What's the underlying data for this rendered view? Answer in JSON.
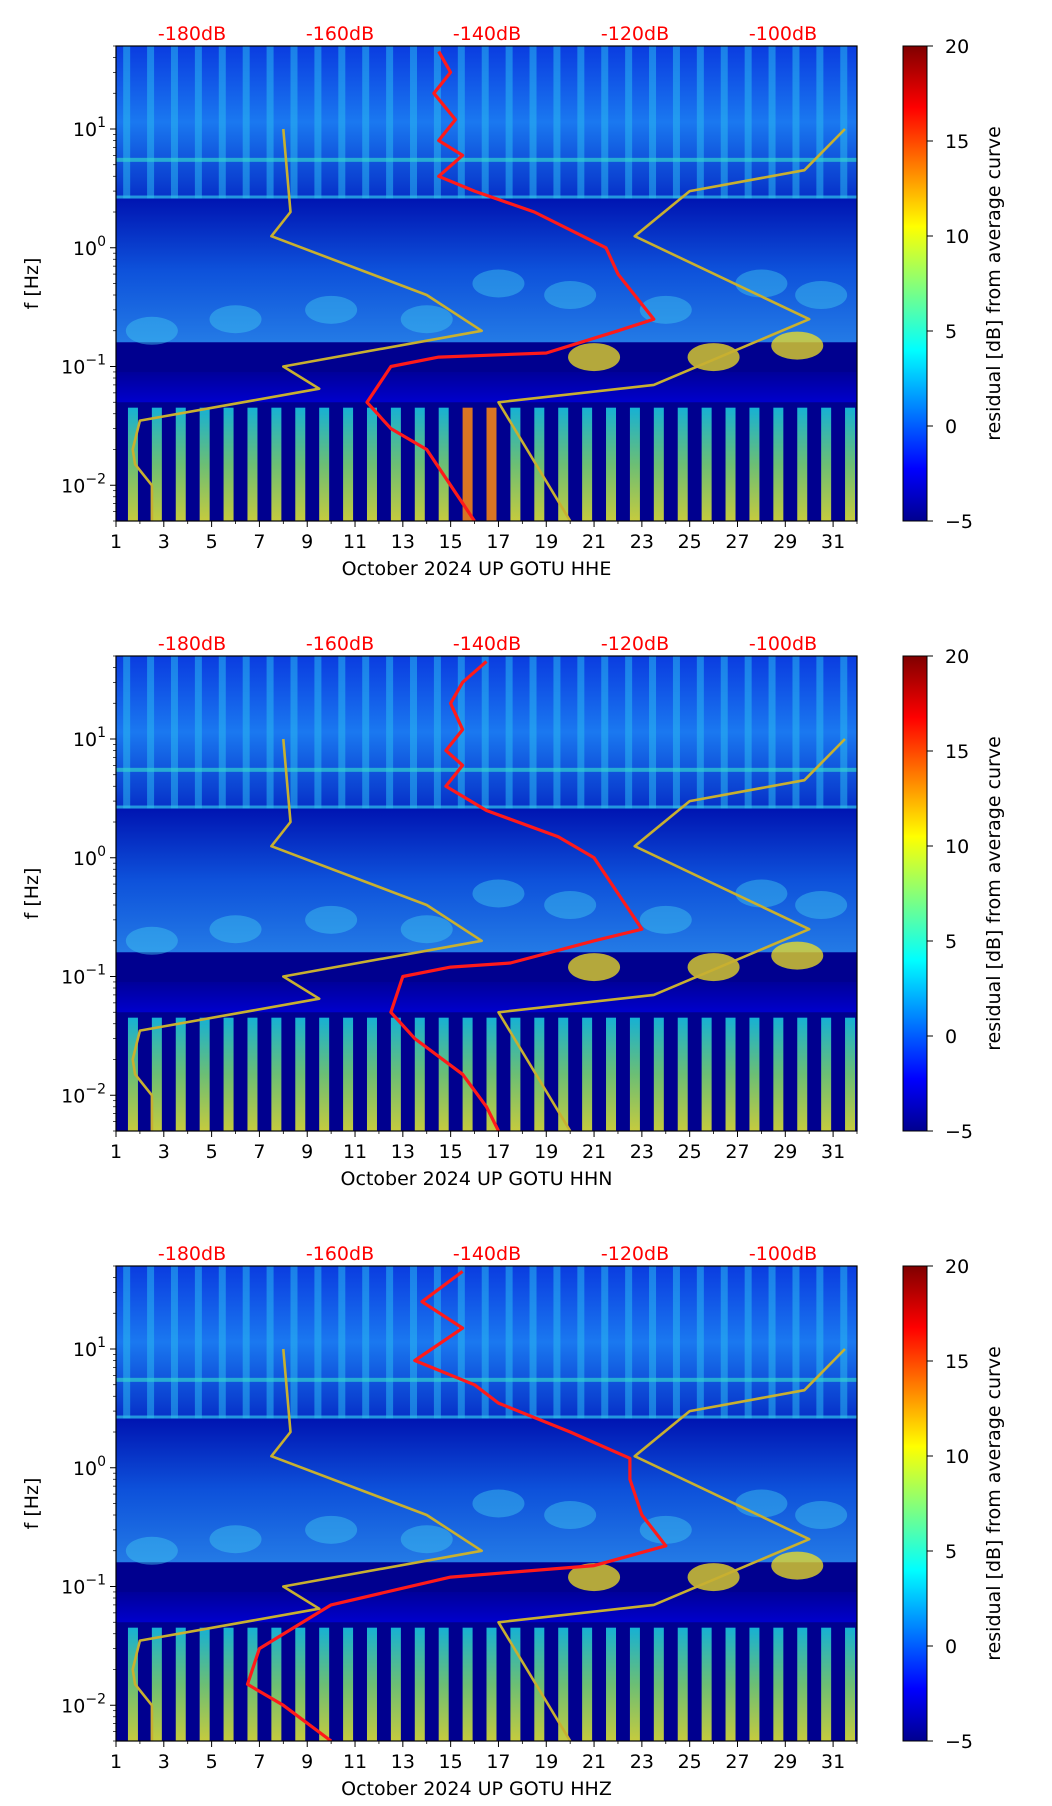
{
  "figure": {
    "x_ticks": [
      "1",
      "3",
      "5",
      "7",
      "9",
      "11",
      "13",
      "15",
      "17",
      "19",
      "21",
      "23",
      "25",
      "27",
      "29",
      "31"
    ],
    "y_ticks": [
      "10^1",
      "10^0",
      "10^-1",
      "10^-2"
    ],
    "y_label": "f [Hz]",
    "colorbar_label": "residual [dB] from average curve",
    "colorbar_ticks": [
      "20",
      "15",
      "10",
      "5",
      "0",
      "−5"
    ],
    "db_labels": [
      "-180dB",
      "-160dB",
      "-140dB",
      "-120dB",
      "-100dB"
    ],
    "colors": {
      "psd_curve": "#ff1a1a",
      "noise_model": "#c8b030",
      "db_label": "#ff0000",
      "background_plot": "#00008f"
    }
  },
  "chart_data": [
    {
      "type": "heatmap",
      "title": "",
      "xlabel": "October 2024 UP GOTU  HHE",
      "ylabel": "f [Hz]",
      "xlim": [
        1,
        32
      ],
      "ylim_hz": [
        0.005,
        50
      ],
      "yscale": "log",
      "colorbar": {
        "label": "residual [dB] from average curve",
        "range": [
          -5,
          20
        ],
        "ticks": [
          -5,
          0,
          5,
          10,
          15,
          20
        ],
        "colormap": "jet"
      },
      "top_axis_db": [
        -180,
        -160,
        -140,
        -120,
        -100
      ],
      "series": [
        {
          "name": "median PSD",
          "color": "red",
          "points_day_hz": [
            [
              14.5,
              45
            ],
            [
              15.0,
              30
            ],
            [
              14.3,
              20
            ],
            [
              15.2,
              12
            ],
            [
              14.5,
              8
            ],
            [
              15.5,
              6
            ],
            [
              14.5,
              4
            ],
            [
              16.0,
              3
            ],
            [
              18.5,
              2
            ],
            [
              21.5,
              1
            ],
            [
              22.0,
              0.6
            ],
            [
              23.5,
              0.25
            ],
            [
              22.0,
              0.2
            ],
            [
              19.0,
              0.13
            ],
            [
              14.5,
              0.12
            ],
            [
              12.5,
              0.1
            ],
            [
              11.5,
              0.05
            ],
            [
              12.5,
              0.03
            ],
            [
              14.0,
              0.02
            ],
            [
              15.0,
              0.01
            ],
            [
              16.0,
              0.005
            ]
          ]
        },
        {
          "name": "NLNM",
          "color": "gold",
          "points_day_hz": [
            [
              8.0,
              10
            ],
            [
              8.3,
              2
            ],
            [
              7.5,
              1.25
            ],
            [
              14.0,
              0.4
            ],
            [
              16.3,
              0.2
            ],
            [
              8.0,
              0.1
            ],
            [
              9.5,
              0.065
            ],
            [
              2.0,
              0.035
            ],
            [
              1.7,
              0.02
            ],
            [
              1.8,
              0.015
            ],
            [
              2.5,
              0.01
            ],
            [
              2.5,
              0.005
            ]
          ]
        },
        {
          "name": "NHNM",
          "color": "gold",
          "points_day_hz": [
            [
              31.5,
              10
            ],
            [
              29.8,
              4.5
            ],
            [
              25.0,
              3
            ],
            [
              22.7,
              1.25
            ],
            [
              30.0,
              0.25
            ],
            [
              23.5,
              0.07
            ],
            [
              17.0,
              0.05
            ],
            [
              20.0,
              0.005
            ]
          ]
        }
      ]
    },
    {
      "type": "heatmap",
      "title": "",
      "xlabel": "October 2024 UP GOTU  HHN",
      "ylabel": "f [Hz]",
      "xlim": [
        1,
        32
      ],
      "ylim_hz": [
        0.005,
        50
      ],
      "yscale": "log",
      "colorbar": {
        "label": "residual [dB] from average curve",
        "range": [
          -5,
          20
        ],
        "ticks": [
          -5,
          0,
          5,
          10,
          15,
          20
        ],
        "colormap": "jet"
      },
      "top_axis_db": [
        -180,
        -160,
        -140,
        -120,
        -100
      ],
      "series": [
        {
          "name": "median PSD",
          "color": "red",
          "points_day_hz": [
            [
              16.5,
              45
            ],
            [
              15.5,
              30
            ],
            [
              15.0,
              20
            ],
            [
              15.5,
              12
            ],
            [
              14.8,
              8
            ],
            [
              15.5,
              6
            ],
            [
              14.8,
              4
            ],
            [
              16.5,
              2.5
            ],
            [
              19.5,
              1.5
            ],
            [
              21.0,
              1
            ],
            [
              22.0,
              0.5
            ],
            [
              23.0,
              0.25
            ],
            [
              21.0,
              0.2
            ],
            [
              17.5,
              0.13
            ],
            [
              15.0,
              0.12
            ],
            [
              13.0,
              0.1
            ],
            [
              12.5,
              0.05
            ],
            [
              13.5,
              0.03
            ],
            [
              15.5,
              0.015
            ],
            [
              16.5,
              0.008
            ],
            [
              17.0,
              0.005
            ]
          ]
        },
        {
          "name": "NLNM",
          "color": "gold",
          "points_day_hz": [
            [
              8.0,
              10
            ],
            [
              8.3,
              2
            ],
            [
              7.5,
              1.25
            ],
            [
              14.0,
              0.4
            ],
            [
              16.3,
              0.2
            ],
            [
              8.0,
              0.1
            ],
            [
              9.5,
              0.065
            ],
            [
              2.0,
              0.035
            ],
            [
              1.7,
              0.02
            ],
            [
              1.8,
              0.015
            ],
            [
              2.5,
              0.01
            ],
            [
              2.5,
              0.005
            ]
          ]
        },
        {
          "name": "NHNM",
          "color": "gold",
          "points_day_hz": [
            [
              31.5,
              10
            ],
            [
              29.8,
              4.5
            ],
            [
              25.0,
              3
            ],
            [
              22.7,
              1.25
            ],
            [
              30.0,
              0.25
            ],
            [
              23.5,
              0.07
            ],
            [
              17.0,
              0.05
            ],
            [
              20.0,
              0.005
            ]
          ]
        }
      ]
    },
    {
      "type": "heatmap",
      "title": "",
      "xlabel": "October 2024 UP GOTU  HHZ",
      "ylabel": "f [Hz]",
      "xlim": [
        1,
        32
      ],
      "ylim_hz": [
        0.005,
        50
      ],
      "yscale": "log",
      "colorbar": {
        "label": "residual [dB] from average curve",
        "range": [
          -5,
          20
        ],
        "ticks": [
          -5,
          0,
          5,
          10,
          15,
          20
        ],
        "colormap": "jet"
      },
      "top_axis_db": [
        -180,
        -160,
        -140,
        -120,
        -100
      ],
      "series": [
        {
          "name": "median PSD",
          "color": "red",
          "points_day_hz": [
            [
              15.5,
              45
            ],
            [
              13.8,
              25
            ],
            [
              15.5,
              15
            ],
            [
              13.5,
              8
            ],
            [
              16.0,
              5
            ],
            [
              17.0,
              3.5
            ],
            [
              20.0,
              2
            ],
            [
              22.5,
              1.2
            ],
            [
              22.5,
              0.8
            ],
            [
              23.0,
              0.4
            ],
            [
              24.0,
              0.22
            ],
            [
              21.0,
              0.15
            ],
            [
              15.0,
              0.12
            ],
            [
              10.0,
              0.07
            ],
            [
              7.0,
              0.03
            ],
            [
              6.5,
              0.015
            ],
            [
              8.0,
              0.01
            ],
            [
              10.0,
              0.005
            ]
          ]
        },
        {
          "name": "NLNM",
          "color": "gold",
          "points_day_hz": [
            [
              8.0,
              10
            ],
            [
              8.3,
              2
            ],
            [
              7.5,
              1.25
            ],
            [
              14.0,
              0.4
            ],
            [
              16.3,
              0.2
            ],
            [
              8.0,
              0.1
            ],
            [
              9.5,
              0.065
            ],
            [
              2.0,
              0.035
            ],
            [
              1.7,
              0.02
            ],
            [
              1.8,
              0.015
            ],
            [
              2.5,
              0.01
            ],
            [
              2.5,
              0.005
            ]
          ]
        },
        {
          "name": "NHNM",
          "color": "gold",
          "points_day_hz": [
            [
              31.5,
              10
            ],
            [
              29.8,
              4.5
            ],
            [
              25.0,
              3
            ],
            [
              22.7,
              1.25
            ],
            [
              30.0,
              0.25
            ],
            [
              23.5,
              0.07
            ],
            [
              17.0,
              0.05
            ],
            [
              20.0,
              0.005
            ]
          ]
        }
      ]
    }
  ]
}
